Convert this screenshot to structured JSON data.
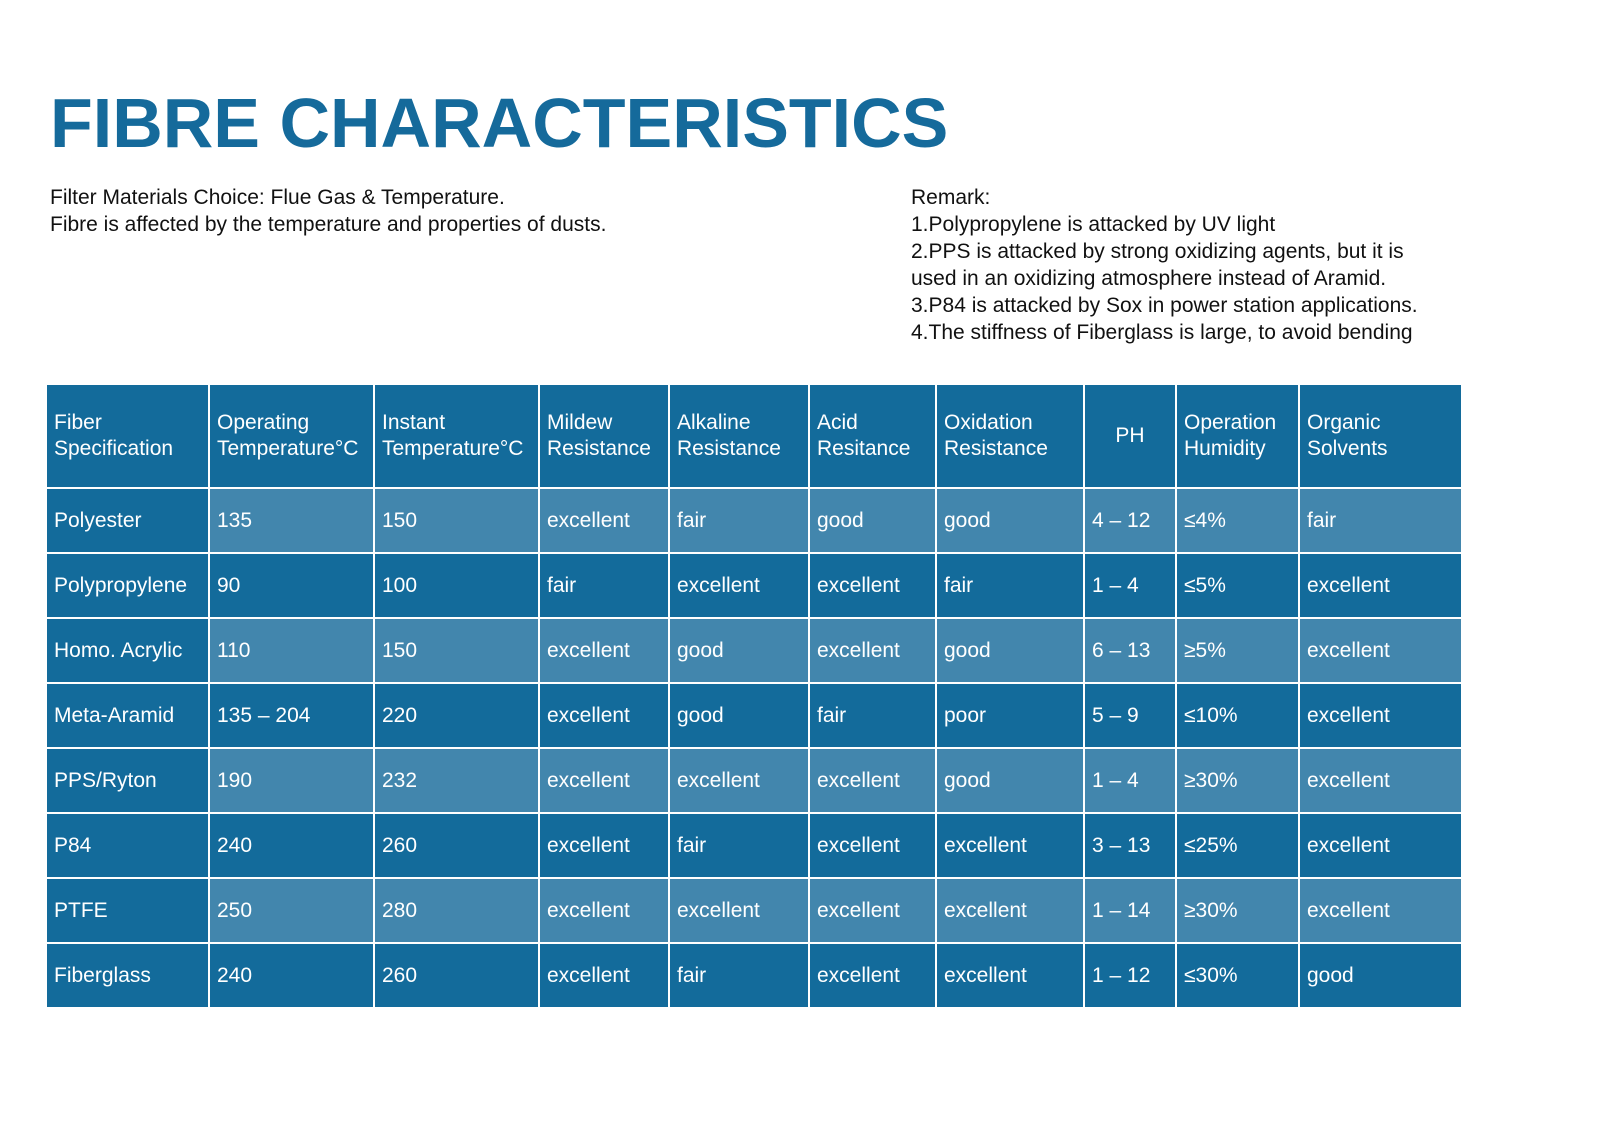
{
  "title": "FIBRE CHARACTERISTICS",
  "intro": {
    "line1": "Filter Materials Choice: Flue Gas & Temperature.",
    "line2": "Fibre is affected by the temperature and properties of dusts."
  },
  "remark": {
    "heading": "Remark:",
    "lines": [
      "1.Polypropylene is attacked by UV light",
      "2.PPS is attacked by strong oxidizing agents, but it is",
      "used in an oxidizing atmosphere instead of Aramid.",
      "3.P84 is attacked by Sox in power station applications.",
      "4.The stiffness of Fiberglass is large, to avoid bending"
    ]
  },
  "colors": {
    "title": "#156a9b",
    "header_bg": "#136b9b",
    "row_dark": "#136b9b",
    "row_light": "#4286ad"
  },
  "table": {
    "headers": [
      [
        "Fiber",
        "Specification"
      ],
      [
        "Operating",
        "Temperature°C"
      ],
      [
        "Instant",
        "Temperature°C"
      ],
      [
        "Mildew",
        "Resistance"
      ],
      [
        "Alkaline",
        "Resistance"
      ],
      [
        "Acid",
        "Resitance"
      ],
      [
        "Oxidation",
        "Resistance"
      ],
      [
        "PH",
        ""
      ],
      [
        "Operation",
        "Humidity"
      ],
      [
        "Organic",
        "Solvents"
      ]
    ],
    "rows": [
      [
        "Polyester",
        "135",
        "150",
        "excellent",
        "fair",
        "good",
        "good",
        "4 – 12",
        "≤4%",
        "fair"
      ],
      [
        "Polypropylene",
        "90",
        "100",
        "fair",
        "excellent",
        "excellent",
        "fair",
        "1 – 4",
        "≤5%",
        "excellent"
      ],
      [
        "Homo. Acrylic",
        "110",
        "150",
        "excellent",
        "good",
        "excellent",
        "good",
        "6 – 13",
        "≥5%",
        "excellent"
      ],
      [
        "Meta-Aramid",
        "135 – 204",
        "220",
        "excellent",
        "good",
        "fair",
        "poor",
        "5 – 9",
        "≤10%",
        "excellent"
      ],
      [
        "PPS/Ryton",
        "190",
        "232",
        "excellent",
        "excellent",
        "excellent",
        "good",
        "1 – 4",
        "≥30%",
        "excellent"
      ],
      [
        "P84",
        "240",
        "260",
        "excellent",
        "fair",
        "excellent",
        "excellent",
        "3 – 13",
        "≤25%",
        "excellent"
      ],
      [
        "PTFE",
        "250",
        "280",
        "excellent",
        "excellent",
        "excellent",
        "excellent",
        "1 – 14",
        "≥30%",
        "excellent"
      ],
      [
        "Fiberglass",
        "240",
        "260",
        "excellent",
        "fair",
        "excellent",
        "excellent",
        "1 – 12",
        "≤30%",
        "good"
      ]
    ]
  }
}
